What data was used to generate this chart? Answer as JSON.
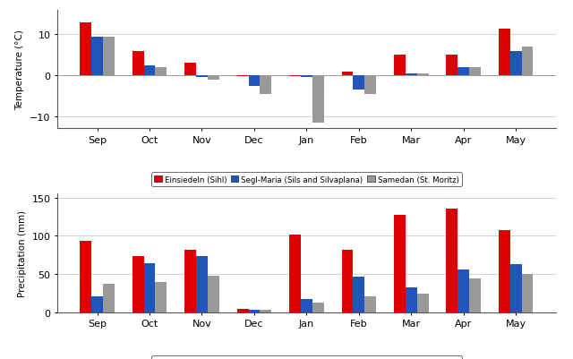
{
  "months": [
    "Sep",
    "Oct",
    "Nov",
    "Dec",
    "Jan",
    "Feb",
    "Mar",
    "Apr",
    "May"
  ],
  "temp": {
    "einsiedeln": [
      13,
      6,
      3,
      -0.3,
      -0.3,
      1,
      5,
      5,
      11.5
    ],
    "segl_maria": [
      9.5,
      2.5,
      -0.5,
      -2.5,
      -0.5,
      -3.5,
      0.5,
      2,
      6
    ],
    "samedan": [
      9.5,
      2.0,
      -1.0,
      -4.5,
      -11.5,
      -4.5,
      0.5,
      2,
      7
    ]
  },
  "precip": {
    "einsiedeln": [
      93,
      74,
      82,
      4,
      102,
      82,
      127,
      135,
      107
    ],
    "segl_maria": [
      21,
      64,
      74,
      3,
      17,
      47,
      32,
      56,
      63
    ],
    "samedan": [
      37,
      39,
      48,
      3,
      12,
      21,
      24,
      44,
      50
    ]
  },
  "colors": {
    "einsiedeln": "#dd0000",
    "segl_maria": "#2255bb",
    "samedan": "#999999"
  },
  "legend_labels": [
    "Einsiedeln (Sihl)",
    "Segl-Maria (Sils and Silvaplana)",
    "Samedan (St. Moritz)"
  ],
  "temp_ylabel": "Temperature (°C)",
  "precip_ylabel": "Precipitation (mm)",
  "temp_ylim": [
    -13,
    16
  ],
  "precip_ylim": [
    0,
    155
  ],
  "temp_yticks": [
    -10,
    0,
    10
  ],
  "precip_yticks": [
    0,
    50,
    100,
    150
  ]
}
